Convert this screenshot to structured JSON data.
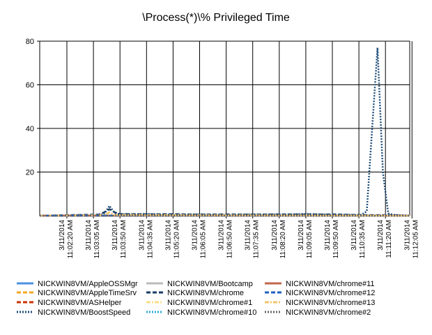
{
  "chart_data": {
    "type": "line",
    "title": "\\Process(*)\\% Privileged Time",
    "xlabel": "",
    "ylabel": "",
    "ylim": [
      0,
      80
    ],
    "y_ticks": [
      20,
      40,
      60,
      80
    ],
    "grid": true,
    "legend_position": "bottom",
    "x_ticks": [
      [
        "3/11/2014",
        "11:02:20 AM"
      ],
      [
        "3/11/2014",
        "11:03:05 AM"
      ],
      [
        "3/11/2014",
        "11:03:50 AM"
      ],
      [
        "3/11/2014",
        "11:04:35 AM"
      ],
      [
        "3/11/2014",
        "11:05:20 AM"
      ],
      [
        "3/11/2014",
        "11:06:05 AM"
      ],
      [
        "3/11/2014",
        "11:06:50 AM"
      ],
      [
        "3/11/2014",
        "11:07:35 AM"
      ],
      [
        "3/11/2014",
        "11:08:20 AM"
      ],
      [
        "3/11/2014",
        "11:09:05 AM"
      ],
      [
        "3/11/2014",
        "11:09:50 AM"
      ],
      [
        "3/11/2014",
        "11:10:35 AM"
      ],
      [
        "3/11/2014",
        "11:11:20 AM"
      ],
      [
        "3/11/2014",
        "11:12:05 AM"
      ]
    ],
    "x_sample_count": 70,
    "series": [
      {
        "name": "NICKWIN8VM/AppleOSSMgr",
        "color": "#4a90e2",
        "dash": "solid",
        "points": [
          [
            0,
            0
          ],
          [
            69,
            0
          ]
        ]
      },
      {
        "name": "NICKWIN8VM/AppleTimeSrv",
        "color": "#f5a623",
        "dash": "dash",
        "points": [
          [
            0,
            0
          ],
          [
            69,
            0
          ]
        ]
      },
      {
        "name": "NICKWIN8VM/ASHelper",
        "color": "#cc3300",
        "dash": "dash",
        "points": [
          [
            0,
            0
          ],
          [
            69,
            0
          ]
        ]
      },
      {
        "name": "NICKWIN8VM/BoostSpeed",
        "color": "#1f4e79",
        "dash": "dot",
        "points": [
          [
            0,
            0
          ],
          [
            11,
            0.4
          ],
          [
            12,
            0.6
          ],
          [
            13,
            4.5
          ],
          [
            14,
            1.2
          ],
          [
            15,
            0.6
          ],
          [
            20,
            0.8
          ],
          [
            25,
            0.4
          ],
          [
            30,
            0.6
          ],
          [
            35,
            0.3
          ],
          [
            40,
            0.6
          ],
          [
            45,
            0.5
          ],
          [
            50,
            0.8
          ],
          [
            55,
            0.4
          ],
          [
            60,
            0.4
          ],
          [
            61,
            2
          ],
          [
            62,
            40
          ],
          [
            63,
            77
          ],
          [
            64,
            20
          ],
          [
            65,
            1.0
          ],
          [
            66,
            0.4
          ],
          [
            69,
            0
          ]
        ]
      },
      {
        "name": "NICKWIN8VM/Bootcamp",
        "color": "#bbbbbb",
        "dash": "solid",
        "points": [
          [
            0,
            0
          ],
          [
            69,
            0
          ]
        ]
      },
      {
        "name": "NICKWIN8VM/chrome",
        "color": "#1a3d66",
        "dash": "dash",
        "points": [
          [
            0,
            0
          ],
          [
            11,
            0.5
          ],
          [
            12,
            1.5
          ],
          [
            13,
            3.0
          ],
          [
            14,
            1.5
          ],
          [
            15,
            0.8
          ],
          [
            20,
            0.6
          ],
          [
            25,
            0.7
          ],
          [
            30,
            0.5
          ],
          [
            35,
            0.6
          ],
          [
            40,
            0.5
          ],
          [
            45,
            0.6
          ],
          [
            50,
            0.5
          ],
          [
            55,
            0.6
          ],
          [
            60,
            0.3
          ],
          [
            63,
            0.3
          ],
          [
            66,
            0.3
          ],
          [
            69,
            0
          ]
        ]
      },
      {
        "name": "NICKWIN8VM/chrome#1",
        "color": "#f7e08a",
        "dash": "dashdot",
        "points": [
          [
            0,
            0
          ],
          [
            69,
            0
          ]
        ]
      },
      {
        "name": "NICKWIN8VM/chrome#10",
        "color": "#2aa8d8",
        "dash": "dot",
        "points": [
          [
            0,
            0
          ],
          [
            69,
            0
          ]
        ]
      },
      {
        "name": "NICKWIN8VM/chrome#11",
        "color": "#c0664a",
        "dash": "solid",
        "points": [
          [
            0,
            0
          ],
          [
            69,
            0
          ]
        ]
      },
      {
        "name": "NICKWIN8VM/chrome#12",
        "color": "#1f5fbf",
        "dash": "dash",
        "points": [
          [
            0,
            0
          ],
          [
            69,
            0
          ]
        ]
      },
      {
        "name": "NICKWIN8VM/chrome#13",
        "color": "#f2c46a",
        "dash": "dashdot",
        "points": [
          [
            0,
            0
          ],
          [
            12,
            0.2
          ],
          [
            13,
            1.5
          ],
          [
            14,
            0.3
          ],
          [
            69,
            0
          ]
        ]
      },
      {
        "name": "NICKWIN8VM/chrome#2",
        "color": "#666666",
        "dash": "dot",
        "points": [
          [
            0,
            0
          ],
          [
            69,
            0
          ]
        ]
      }
    ]
  }
}
